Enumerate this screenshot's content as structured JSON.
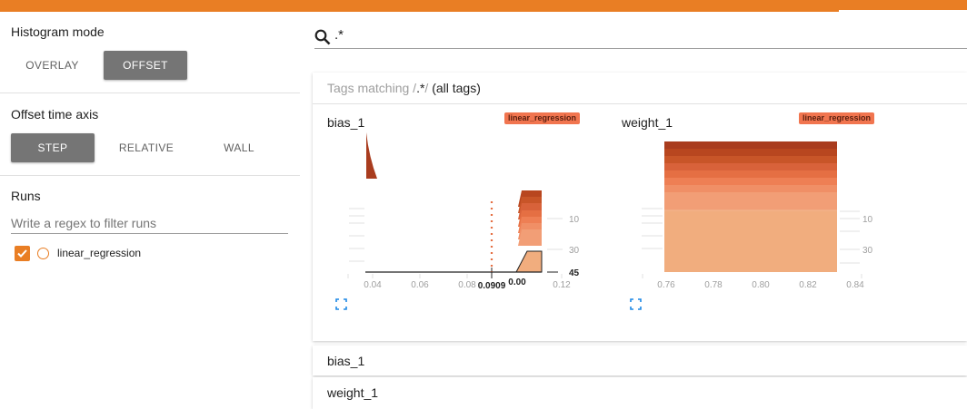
{
  "sidebar": {
    "histogram_mode": {
      "title": "Histogram mode",
      "options": [
        "OVERLAY",
        "OFFSET"
      ],
      "selected": "OFFSET"
    },
    "offset_axis": {
      "title": "Offset time axis",
      "options": [
        "STEP",
        "RELATIVE",
        "WALL"
      ],
      "selected": "STEP"
    },
    "runs": {
      "title": "Runs",
      "filter_placeholder": "Write a regex to filter runs",
      "items": [
        {
          "label": "linear_regression",
          "checked": true,
          "color": "#e97e24"
        }
      ]
    }
  },
  "search": {
    "value": ".*",
    "icon": "search-icon"
  },
  "tags": {
    "prefix": "Tags matching /",
    "pattern": ".*",
    "suffix": "/",
    "all": "(all tags)"
  },
  "charts": [
    {
      "title": "bias_1",
      "run": "linear_regression",
      "x_ticks": [
        "0.04",
        "0.06",
        "0.08",
        "0.12"
      ],
      "y_ticks": [
        "10",
        "30",
        "45"
      ],
      "hover_x": "0.0909",
      "hover_right": "0.00",
      "x_range": [
        0.03,
        0.125
      ],
      "steps": [
        0,
        45
      ]
    },
    {
      "title": "weight_1",
      "run": "linear_regression",
      "x_ticks": [
        "0.76",
        "0.78",
        "0.80",
        "0.82",
        "0.84"
      ],
      "y_ticks": [
        "10",
        "30"
      ],
      "x_range": [
        0.75,
        0.85
      ]
    }
  ],
  "collapsed_sections": [
    "bias_1",
    "weight_1"
  ],
  "colors": {
    "accent": "#e97e24",
    "tag_bg": "#f1754f",
    "hist_dark": "#a93c1e",
    "hist_light": "#f1ad7e"
  }
}
